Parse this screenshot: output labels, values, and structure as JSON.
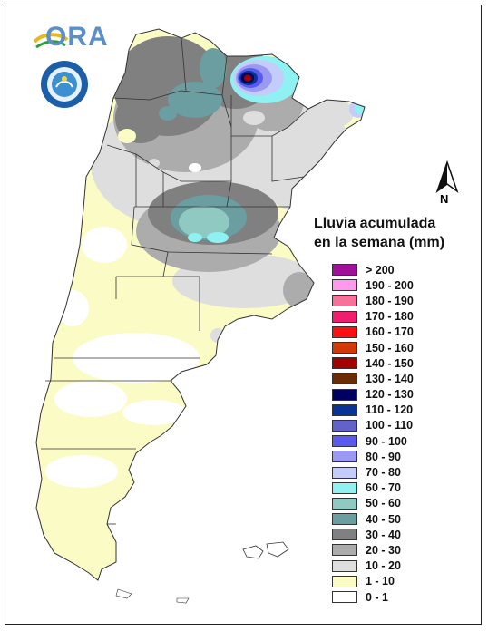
{
  "header": {
    "logo_text": "ORA",
    "seal_name": "servicio meteorologico nacional argentina",
    "north_label": "N"
  },
  "legend": {
    "title_line1": "Lluvia acumulada",
    "title_line2": "en la semana (mm)",
    "items": [
      {
        "label": "> 200",
        "color": "#a0109a"
      },
      {
        "label": "190 - 200",
        "color": "#ff99ee"
      },
      {
        "label": "180 - 190",
        "color": "#f5739b"
      },
      {
        "label": "170 - 180",
        "color": "#f01e6e"
      },
      {
        "label": "160 - 170",
        "color": "#ff1010"
      },
      {
        "label": "150 - 160",
        "color": "#d03a08"
      },
      {
        "label": "140 - 150",
        "color": "#a50000"
      },
      {
        "label": "130 - 140",
        "color": "#6b2c05"
      },
      {
        "label": "120 - 130",
        "color": "#000060"
      },
      {
        "label": "110 - 120",
        "color": "#0a3397"
      },
      {
        "label": "100 - 110",
        "color": "#6262c8"
      },
      {
        "label": "90 - 100",
        "color": "#5a5af0"
      },
      {
        "label": "80 - 90",
        "color": "#9a9af5"
      },
      {
        "label": "70 - 80",
        "color": "#c4cdfa"
      },
      {
        "label": "60 - 70",
        "color": "#8ff1f1"
      },
      {
        "label": "50 - 60",
        "color": "#8fc9c2"
      },
      {
        "label": "40 - 50",
        "color": "#6a9ea0"
      },
      {
        "label": "30 - 40",
        "color": "#808080"
      },
      {
        "label": "20 - 30",
        "color": "#acacac"
      },
      {
        "label": "10 - 20",
        "color": "#dedede"
      },
      {
        "label": "1 - 10",
        "color": "#fbfbc5"
      },
      {
        "label": "0 - 1",
        "color": "#ffffff"
      }
    ]
  }
}
